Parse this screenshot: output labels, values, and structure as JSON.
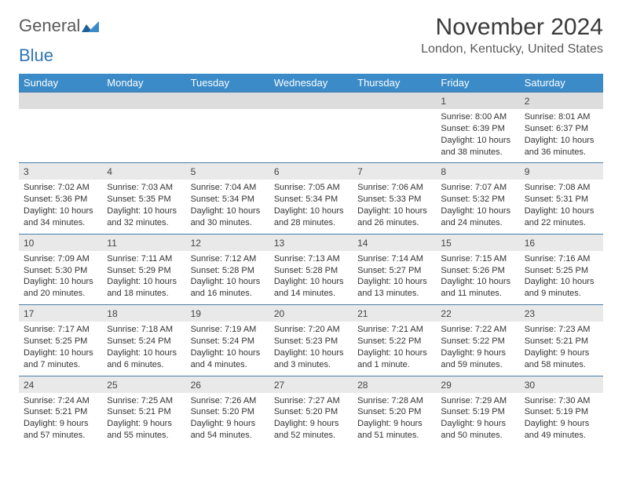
{
  "logo": {
    "word1": "General",
    "word2": "Blue"
  },
  "title": "November 2024",
  "location": "London, Kentucky, United States",
  "header_color": "#3b8bc8",
  "daynum_bg": "#e9e9e9",
  "daynum_bg_first": "#dddddd",
  "border_color": "#4a7da8",
  "weekdays": [
    "Sunday",
    "Monday",
    "Tuesday",
    "Wednesday",
    "Thursday",
    "Friday",
    "Saturday"
  ],
  "weeks": [
    [
      {
        "day": "",
        "lines": [
          "",
          "",
          "",
          ""
        ]
      },
      {
        "day": "",
        "lines": [
          "",
          "",
          "",
          ""
        ]
      },
      {
        "day": "",
        "lines": [
          "",
          "",
          "",
          ""
        ]
      },
      {
        "day": "",
        "lines": [
          "",
          "",
          "",
          ""
        ]
      },
      {
        "day": "",
        "lines": [
          "",
          "",
          "",
          ""
        ]
      },
      {
        "day": "1",
        "lines": [
          "Sunrise: 8:00 AM",
          "Sunset: 6:39 PM",
          "Daylight: 10 hours",
          "and 38 minutes."
        ]
      },
      {
        "day": "2",
        "lines": [
          "Sunrise: 8:01 AM",
          "Sunset: 6:37 PM",
          "Daylight: 10 hours",
          "and 36 minutes."
        ]
      }
    ],
    [
      {
        "day": "3",
        "lines": [
          "Sunrise: 7:02 AM",
          "Sunset: 5:36 PM",
          "Daylight: 10 hours",
          "and 34 minutes."
        ]
      },
      {
        "day": "4",
        "lines": [
          "Sunrise: 7:03 AM",
          "Sunset: 5:35 PM",
          "Daylight: 10 hours",
          "and 32 minutes."
        ]
      },
      {
        "day": "5",
        "lines": [
          "Sunrise: 7:04 AM",
          "Sunset: 5:34 PM",
          "Daylight: 10 hours",
          "and 30 minutes."
        ]
      },
      {
        "day": "6",
        "lines": [
          "Sunrise: 7:05 AM",
          "Sunset: 5:34 PM",
          "Daylight: 10 hours",
          "and 28 minutes."
        ]
      },
      {
        "day": "7",
        "lines": [
          "Sunrise: 7:06 AM",
          "Sunset: 5:33 PM",
          "Daylight: 10 hours",
          "and 26 minutes."
        ]
      },
      {
        "day": "8",
        "lines": [
          "Sunrise: 7:07 AM",
          "Sunset: 5:32 PM",
          "Daylight: 10 hours",
          "and 24 minutes."
        ]
      },
      {
        "day": "9",
        "lines": [
          "Sunrise: 7:08 AM",
          "Sunset: 5:31 PM",
          "Daylight: 10 hours",
          "and 22 minutes."
        ]
      }
    ],
    [
      {
        "day": "10",
        "lines": [
          "Sunrise: 7:09 AM",
          "Sunset: 5:30 PM",
          "Daylight: 10 hours",
          "and 20 minutes."
        ]
      },
      {
        "day": "11",
        "lines": [
          "Sunrise: 7:11 AM",
          "Sunset: 5:29 PM",
          "Daylight: 10 hours",
          "and 18 minutes."
        ]
      },
      {
        "day": "12",
        "lines": [
          "Sunrise: 7:12 AM",
          "Sunset: 5:28 PM",
          "Daylight: 10 hours",
          "and 16 minutes."
        ]
      },
      {
        "day": "13",
        "lines": [
          "Sunrise: 7:13 AM",
          "Sunset: 5:28 PM",
          "Daylight: 10 hours",
          "and 14 minutes."
        ]
      },
      {
        "day": "14",
        "lines": [
          "Sunrise: 7:14 AM",
          "Sunset: 5:27 PM",
          "Daylight: 10 hours",
          "and 13 minutes."
        ]
      },
      {
        "day": "15",
        "lines": [
          "Sunrise: 7:15 AM",
          "Sunset: 5:26 PM",
          "Daylight: 10 hours",
          "and 11 minutes."
        ]
      },
      {
        "day": "16",
        "lines": [
          "Sunrise: 7:16 AM",
          "Sunset: 5:25 PM",
          "Daylight: 10 hours",
          "and 9 minutes."
        ]
      }
    ],
    [
      {
        "day": "17",
        "lines": [
          "Sunrise: 7:17 AM",
          "Sunset: 5:25 PM",
          "Daylight: 10 hours",
          "and 7 minutes."
        ]
      },
      {
        "day": "18",
        "lines": [
          "Sunrise: 7:18 AM",
          "Sunset: 5:24 PM",
          "Daylight: 10 hours",
          "and 6 minutes."
        ]
      },
      {
        "day": "19",
        "lines": [
          "Sunrise: 7:19 AM",
          "Sunset: 5:24 PM",
          "Daylight: 10 hours",
          "and 4 minutes."
        ]
      },
      {
        "day": "20",
        "lines": [
          "Sunrise: 7:20 AM",
          "Sunset: 5:23 PM",
          "Daylight: 10 hours",
          "and 3 minutes."
        ]
      },
      {
        "day": "21",
        "lines": [
          "Sunrise: 7:21 AM",
          "Sunset: 5:22 PM",
          "Daylight: 10 hours",
          "and 1 minute."
        ]
      },
      {
        "day": "22",
        "lines": [
          "Sunrise: 7:22 AM",
          "Sunset: 5:22 PM",
          "Daylight: 9 hours",
          "and 59 minutes."
        ]
      },
      {
        "day": "23",
        "lines": [
          "Sunrise: 7:23 AM",
          "Sunset: 5:21 PM",
          "Daylight: 9 hours",
          "and 58 minutes."
        ]
      }
    ],
    [
      {
        "day": "24",
        "lines": [
          "Sunrise: 7:24 AM",
          "Sunset: 5:21 PM",
          "Daylight: 9 hours",
          "and 57 minutes."
        ]
      },
      {
        "day": "25",
        "lines": [
          "Sunrise: 7:25 AM",
          "Sunset: 5:21 PM",
          "Daylight: 9 hours",
          "and 55 minutes."
        ]
      },
      {
        "day": "26",
        "lines": [
          "Sunrise: 7:26 AM",
          "Sunset: 5:20 PM",
          "Daylight: 9 hours",
          "and 54 minutes."
        ]
      },
      {
        "day": "27",
        "lines": [
          "Sunrise: 7:27 AM",
          "Sunset: 5:20 PM",
          "Daylight: 9 hours",
          "and 52 minutes."
        ]
      },
      {
        "day": "28",
        "lines": [
          "Sunrise: 7:28 AM",
          "Sunset: 5:20 PM",
          "Daylight: 9 hours",
          "and 51 minutes."
        ]
      },
      {
        "day": "29",
        "lines": [
          "Sunrise: 7:29 AM",
          "Sunset: 5:19 PM",
          "Daylight: 9 hours",
          "and 50 minutes."
        ]
      },
      {
        "day": "30",
        "lines": [
          "Sunrise: 7:30 AM",
          "Sunset: 5:19 PM",
          "Daylight: 9 hours",
          "and 49 minutes."
        ]
      }
    ]
  ]
}
